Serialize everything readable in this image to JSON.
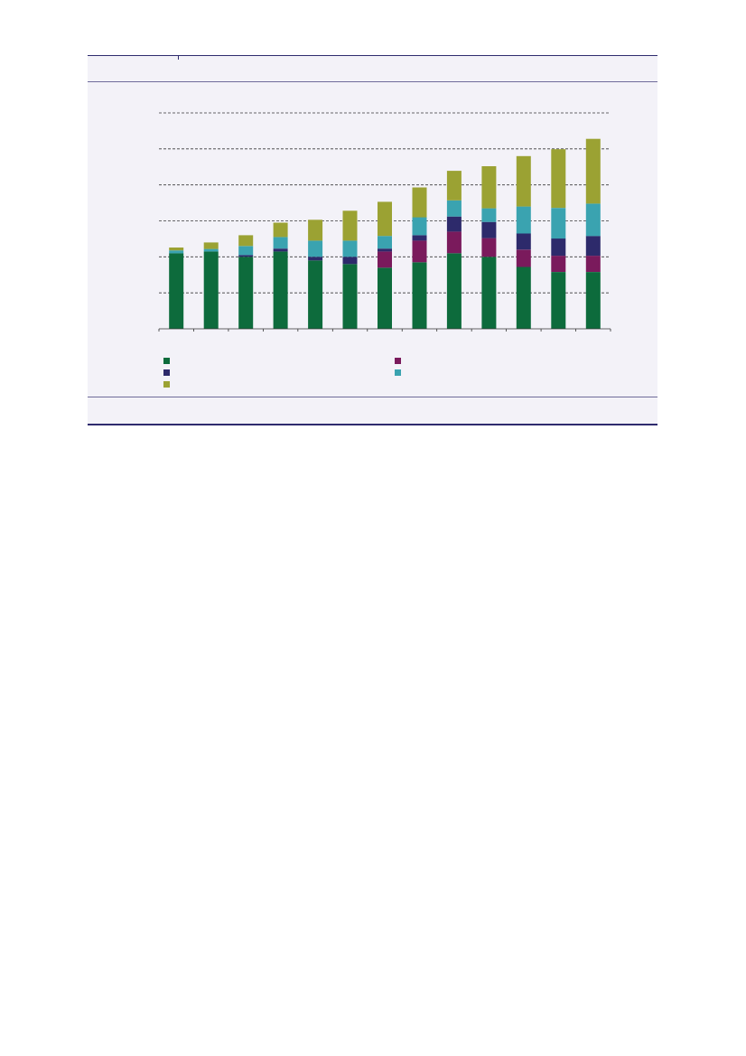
{
  "colors": {
    "panel_background": "#f3f2f8",
    "rule": "#2e2b6e",
    "gridline": "#3a3a3a"
  },
  "chart_data": {
    "type": "bar",
    "stacked": true,
    "title": "",
    "xlabel": "",
    "ylabel": "",
    "grid": true,
    "legend_placement": "bottom",
    "ylim": [
      0,
      6
    ],
    "categories": [
      "",
      "",
      "",
      "",
      "",
      "",
      "",
      "",
      "",
      "",
      "",
      "",
      ""
    ],
    "series": [
      {
        "color": "#0d6b3c",
        "values": [
          2.1,
          2.15,
          2.0,
          2.15,
          1.9,
          1.8,
          1.7,
          1.85,
          2.1,
          2.0,
          1.72,
          1.58,
          1.58
        ]
      },
      {
        "color": "#7a1a5c",
        "values": [
          0,
          0,
          0,
          0,
          0,
          0,
          0.45,
          0.6,
          0.6,
          0.52,
          0.48,
          0.45,
          0.45
        ]
      },
      {
        "color": "#2d2a6b",
        "values": [
          0,
          0,
          0.05,
          0.08,
          0.1,
          0.2,
          0.08,
          0.15,
          0.42,
          0.45,
          0.45,
          0.48,
          0.55
        ]
      },
      {
        "color": "#3aa3b0",
        "values": [
          0.08,
          0.07,
          0.25,
          0.32,
          0.45,
          0.45,
          0.35,
          0.5,
          0.45,
          0.38,
          0.75,
          0.85,
          0.9
        ]
      },
      {
        "color": "#9ba233",
        "values": [
          0.08,
          0.18,
          0.3,
          0.4,
          0.58,
          0.83,
          0.95,
          0.83,
          0.82,
          1.17,
          1.4,
          1.63,
          1.8
        ]
      }
    ],
    "legend": [
      {
        "series": 0,
        "label": ""
      },
      {
        "series": 1,
        "label": ""
      },
      {
        "series": 2,
        "label": ""
      },
      {
        "series": 3,
        "label": ""
      },
      {
        "series": 4,
        "label": ""
      }
    ]
  }
}
